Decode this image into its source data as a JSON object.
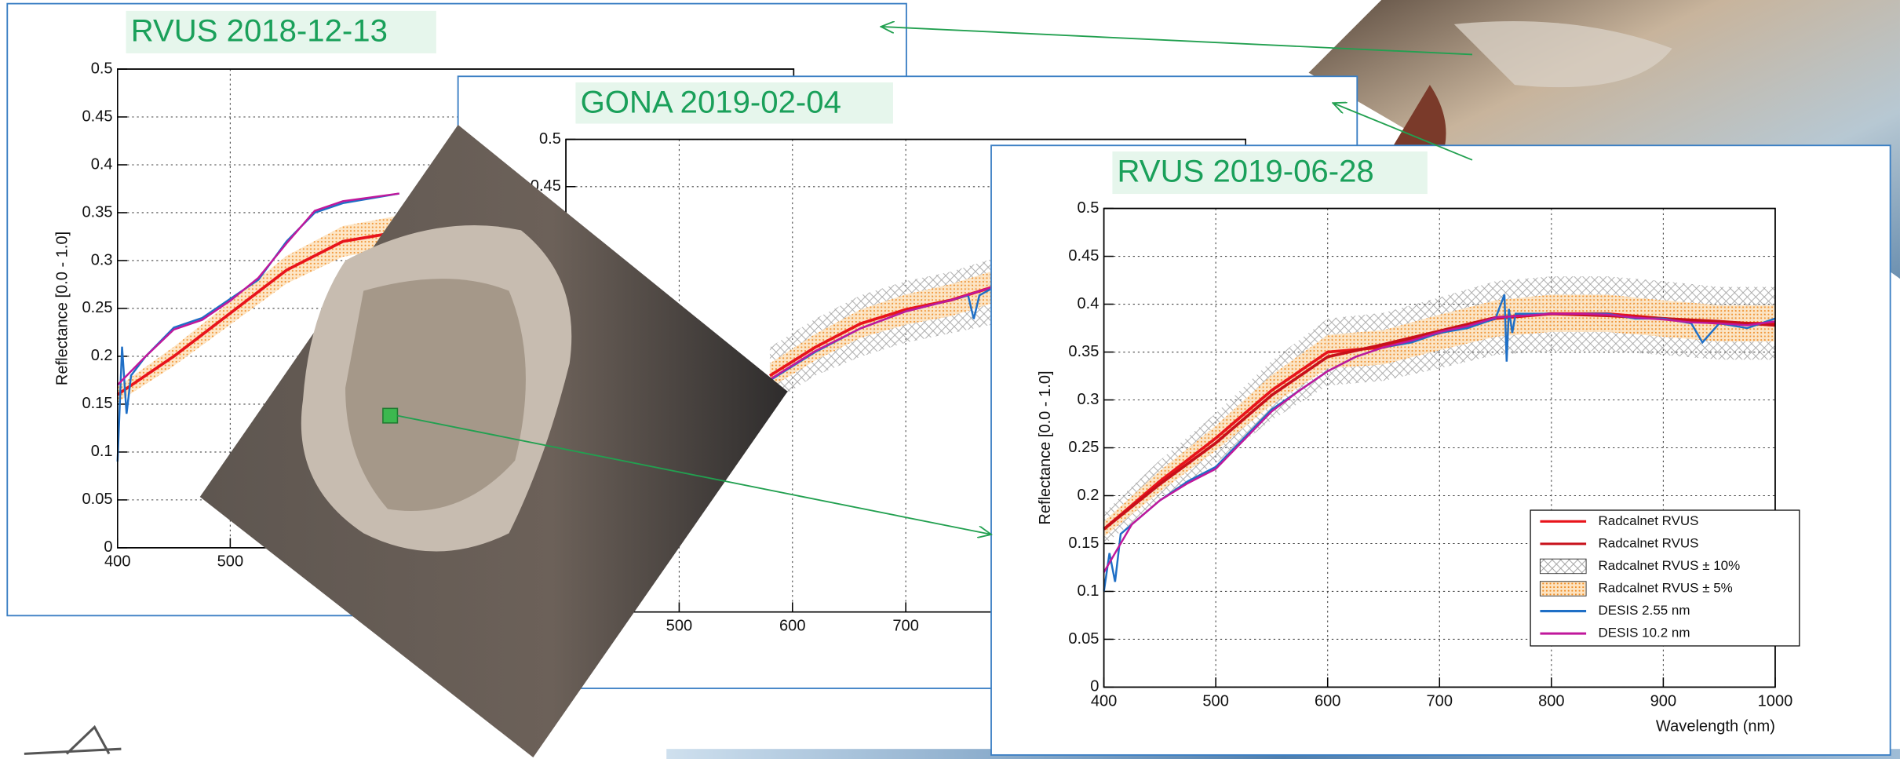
{
  "chart_data": [
    {
      "type": "line",
      "title": "RVUS 2018-12-13",
      "y_label": "Reflectance [0.0 - 1.0]",
      "xlim": [
        400,
        1000
      ],
      "ylim": [
        0,
        0.5
      ],
      "xticks": [
        400,
        500
      ],
      "yticks": [
        0,
        0.05,
        0.1,
        0.15,
        0.2,
        0.25,
        0.3,
        0.35,
        0.4,
        0.45,
        0.5
      ],
      "grid": true,
      "series": [
        {
          "color": "#f5a04a",
          "x": [
            400,
            450,
            500,
            550,
            600,
            650
          ],
          "lower": [
            0.152,
            0.19,
            0.233,
            0.276,
            0.304,
            0.314
          ],
          "upper": [
            0.168,
            0.21,
            0.257,
            0.305,
            0.336,
            0.347
          ]
        },
        {
          "color": "#e8141b",
          "x": [
            400,
            450,
            500,
            550,
            600,
            650
          ],
          "values": [
            0.16,
            0.2,
            0.245,
            0.29,
            0.32,
            0.33
          ]
        },
        {
          "color": "#1f6fc6",
          "x": [
            400,
            404,
            408,
            412,
            425,
            450,
            475,
            500,
            525,
            550,
            575,
            600,
            625,
            650
          ],
          "values": [
            0.09,
            0.21,
            0.14,
            0.18,
            0.2,
            0.23,
            0.24,
            0.26,
            0.28,
            0.32,
            0.35,
            0.36,
            0.365,
            0.37
          ]
        },
        {
          "color": "#c0189c",
          "x": [
            400,
            425,
            450,
            475,
            500,
            525,
            550,
            575,
            600,
            625,
            650
          ],
          "values": [
            0.17,
            0.2,
            0.228,
            0.238,
            0.258,
            0.282,
            0.318,
            0.352,
            0.362,
            0.366,
            0.37
          ]
        }
      ]
    },
    {
      "type": "line",
      "title": "GONA 2019-02-04",
      "xlim": [
        400,
        1000
      ],
      "ylim": [
        0,
        0.5
      ],
      "xticks": [
        500,
        600,
        700
      ],
      "yticks": [
        0.45,
        0.5
      ],
      "grid": true,
      "series": [
        {
          "color": "#aaaaaa",
          "x": [
            580,
            620,
            660,
            700,
            740,
            780,
            850
          ],
          "lower": [
            0.22,
            0.25,
            0.27,
            0.285,
            0.295,
            0.305,
            0.315
          ],
          "upper": [
            0.28,
            0.31,
            0.335,
            0.35,
            0.36,
            0.375,
            0.39
          ]
        },
        {
          "color": "#f5a04a",
          "x": [
            580,
            620,
            660,
            700,
            740,
            780,
            850
          ],
          "lower": [
            0.237,
            0.266,
            0.29,
            0.304,
            0.313,
            0.328,
            0.34
          ],
          "upper": [
            0.263,
            0.294,
            0.32,
            0.336,
            0.347,
            0.362,
            0.375
          ]
        },
        {
          "color": "#e8141b",
          "x": [
            580,
            620,
            660,
            700,
            740,
            780,
            850
          ],
          "values": [
            0.25,
            0.28,
            0.305,
            0.32,
            0.33,
            0.345,
            0.357
          ]
        },
        {
          "color": "#1f6fc6",
          "x": [
            580,
            620,
            660,
            700,
            740,
            755,
            760,
            765,
            780,
            850
          ],
          "values": [
            0.245,
            0.275,
            0.3,
            0.318,
            0.33,
            0.335,
            0.31,
            0.335,
            0.345,
            0.357
          ]
        },
        {
          "color": "#c0189c",
          "x": [
            580,
            620,
            660,
            700,
            740,
            780,
            850
          ],
          "values": [
            0.246,
            0.276,
            0.3,
            0.318,
            0.33,
            0.345,
            0.357
          ]
        }
      ]
    },
    {
      "type": "line",
      "title": "RVUS 2019-06-28",
      "x_label": "Wavelength (nm)",
      "y_label": "Reflectance [0.0 - 1.0]",
      "xlim": [
        400,
        1000
      ],
      "ylim": [
        0,
        0.5
      ],
      "xticks": [
        400,
        500,
        600,
        700,
        800,
        900,
        1000
      ],
      "yticks": [
        0,
        0.05,
        0.1,
        0.15,
        0.2,
        0.25,
        0.3,
        0.35,
        0.4,
        0.45,
        0.5
      ],
      "grid": true,
      "legend": "lower right",
      "series": [
        {
          "name": "Radcalnet RVUS",
          "color": "#e8141b",
          "x": [
            400,
            450,
            500,
            550,
            600,
            650,
            700,
            750,
            800,
            850,
            900,
            950,
            1000
          ],
          "values": [
            0.165,
            0.215,
            0.26,
            0.31,
            0.35,
            0.355,
            0.37,
            0.385,
            0.39,
            0.39,
            0.385,
            0.38,
            0.38
          ]
        },
        {
          "name": "Radcalnet RVUS",
          "color": "#c8101a",
          "x": [
            400,
            450,
            500,
            550,
            600,
            650,
            700,
            750,
            800,
            850,
            900,
            950,
            1000
          ],
          "values": [
            0.165,
            0.212,
            0.255,
            0.305,
            0.345,
            0.358,
            0.372,
            0.386,
            0.39,
            0.388,
            0.385,
            0.382,
            0.378
          ]
        },
        {
          "name": "Radcalnet RVUS ± 10%",
          "color": "#aaaaaa",
          "x": [
            400,
            450,
            500,
            550,
            600,
            650,
            700,
            750,
            800,
            850,
            900,
            950,
            1000
          ],
          "lower": [
            0.149,
            0.194,
            0.234,
            0.279,
            0.315,
            0.32,
            0.333,
            0.347,
            0.351,
            0.351,
            0.347,
            0.342,
            0.342
          ],
          "upper": [
            0.182,
            0.237,
            0.286,
            0.341,
            0.385,
            0.391,
            0.407,
            0.424,
            0.429,
            0.429,
            0.424,
            0.418,
            0.418
          ]
        },
        {
          "name": "Radcalnet RVUS ± 5%",
          "color": "#f5a04a",
          "x": [
            400,
            450,
            500,
            550,
            600,
            650,
            700,
            750,
            800,
            850,
            900,
            950,
            1000
          ],
          "lower": [
            0.157,
            0.204,
            0.247,
            0.295,
            0.333,
            0.337,
            0.352,
            0.366,
            0.371,
            0.371,
            0.366,
            0.361,
            0.361
          ],
          "upper": [
            0.173,
            0.226,
            0.273,
            0.326,
            0.368,
            0.373,
            0.389,
            0.404,
            0.41,
            0.41,
            0.404,
            0.399,
            0.399
          ]
        },
        {
          "name": "DESIS 2.55 nm",
          "color": "#1f6fc6",
          "x": [
            400,
            405,
            410,
            415,
            425,
            450,
            475,
            500,
            525,
            550,
            575,
            600,
            625,
            650,
            675,
            700,
            725,
            750,
            758,
            760,
            762,
            765,
            768,
            775,
            800,
            825,
            850,
            875,
            900,
            925,
            935,
            950,
            975,
            1000
          ],
          "values": [
            0.1,
            0.14,
            0.11,
            0.16,
            0.17,
            0.195,
            0.215,
            0.23,
            0.26,
            0.29,
            0.31,
            0.33,
            0.345,
            0.355,
            0.36,
            0.37,
            0.375,
            0.385,
            0.41,
            0.34,
            0.395,
            0.37,
            0.39,
            0.39,
            0.39,
            0.39,
            0.39,
            0.385,
            0.385,
            0.38,
            0.36,
            0.38,
            0.375,
            0.385
          ]
        },
        {
          "name": "DESIS 10.2 nm",
          "color": "#c0189c",
          "x": [
            400,
            410,
            425,
            450,
            475,
            500,
            525,
            550,
            575,
            600,
            625,
            650,
            675,
            700,
            725,
            750,
            775,
            800,
            825,
            850,
            875,
            900,
            925,
            950,
            975,
            1000
          ],
          "values": [
            0.12,
            0.14,
            0.17,
            0.195,
            0.213,
            0.228,
            0.258,
            0.288,
            0.31,
            0.33,
            0.345,
            0.355,
            0.362,
            0.371,
            0.377,
            0.386,
            0.388,
            0.39,
            0.39,
            0.389,
            0.386,
            0.384,
            0.381,
            0.38,
            0.378,
            0.382
          ]
        }
      ]
    }
  ]
}
